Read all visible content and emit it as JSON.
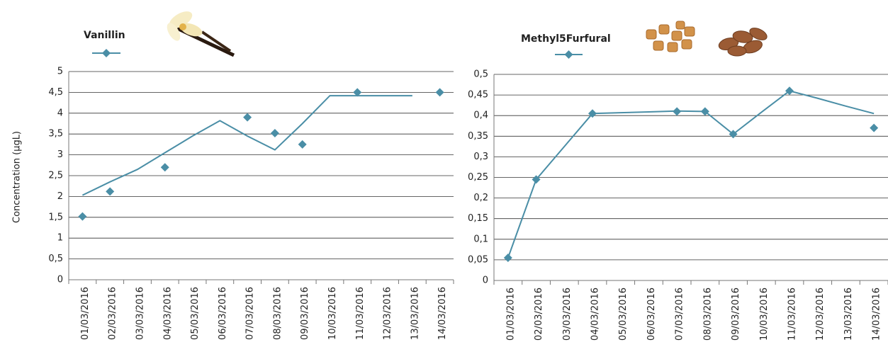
{
  "chart_data": [
    {
      "type": "line",
      "y_label": "Concentration (µgL)",
      "categories": [
        "01/03/2016",
        "02/03/2016",
        "03/03/2016",
        "04/03/2016",
        "05/03/2016",
        "06/03/2016",
        "07/03/2016",
        "08/03/2016",
        "09/03/2016",
        "10/03/2016",
        "11/03/2016",
        "12/03/2016",
        "13/03/2016",
        "14/03/2016"
      ],
      "series": [
        {
          "name": "Vanillin",
          "color": "#4a8ea6",
          "values": [
            1.52,
            2.12,
            null,
            2.7,
            null,
            null,
            3.9,
            3.52,
            3.25,
            null,
            4.5,
            null,
            null,
            4.5
          ],
          "trend": [
            2.03,
            2.35,
            2.65,
            3.05,
            3.45,
            3.82,
            3.45,
            3.12,
            3.75,
            4.42,
            4.42,
            4.42,
            4.42,
            null
          ]
        }
      ],
      "ylim": [
        0,
        5
      ],
      "yticks": [
        0,
        {
          "value": 0.5,
          "label": "0,5"
        },
        1,
        {
          "value": 1.5,
          "label": "1,5"
        },
        2,
        {
          "value": 2.5,
          "label": "2,5"
        },
        3,
        {
          "value": 3.5,
          "label": "3,5"
        },
        4,
        {
          "value": 4.5,
          "label": "4,5"
        },
        5
      ],
      "grid": true
    },
    {
      "type": "line",
      "categories": [
        "01/03/2016",
        "02/03/2016",
        "03/03/2016",
        "04/03/2016",
        "05/03/2016",
        "06/03/2016",
        "07/03/2016",
        "08/03/2016",
        "09/03/2016",
        "10/03/2016",
        "11/03/2016",
        "12/03/2016",
        "13/03/2016",
        "14/03/2016"
      ],
      "series": [
        {
          "name": "Methyl5Furfural",
          "color": "#4a8ea6",
          "values": [
            0.055,
            0.245,
            null,
            0.405,
            null,
            null,
            0.41,
            0.41,
            0.355,
            null,
            0.46,
            null,
            null,
            0.37
          ],
          "trend": [
            0.055,
            0.245,
            0.325,
            0.405,
            0.407,
            0.409,
            0.411,
            0.41,
            0.355,
            0.408,
            0.46,
            0.442,
            0.423,
            0.405
          ]
        }
      ],
      "ylim": [
        0,
        0.5
      ],
      "yticks": [
        0,
        {
          "value": 0.05,
          "label": "0,05"
        },
        {
          "value": 0.1,
          "label": "0,1"
        },
        {
          "value": 0.15,
          "label": "0,15"
        },
        {
          "value": 0.2,
          "label": "0,2"
        },
        {
          "value": 0.25,
          "label": "0,25"
        },
        {
          "value": 0.3,
          "label": "0,3"
        },
        {
          "value": 0.35,
          "label": "0,35"
        },
        {
          "value": 0.4,
          "label": "0,4"
        },
        {
          "value": 0.45,
          "label": "0,45"
        },
        {
          "value": 0.5,
          "label": "0,5"
        }
      ],
      "grid": true
    }
  ]
}
